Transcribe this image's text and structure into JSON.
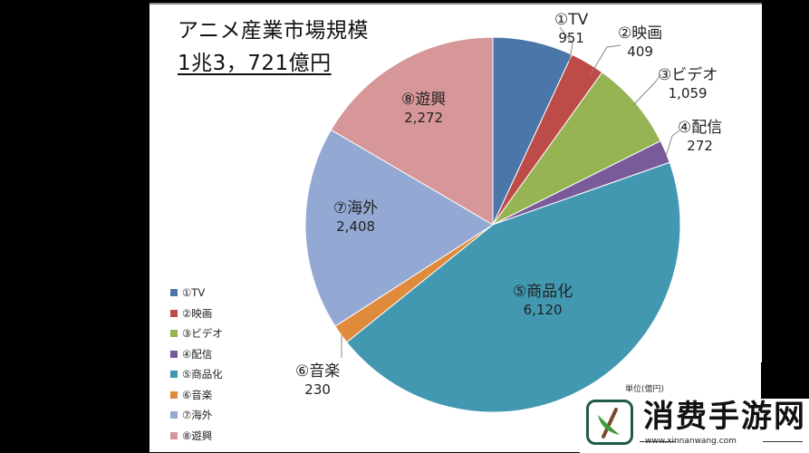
{
  "chart_data": {
    "type": "pie",
    "title": "アニメ産業市場規模",
    "subtitle": "1兆3，721億円",
    "unit_note": "単位(億円)",
    "categories": [
      "①TV",
      "②映画",
      "③ビデオ",
      "④配信",
      "⑤商品化",
      "⑥音楽",
      "⑦海外",
      "⑧遊興"
    ],
    "values": [
      951,
      409,
      1059,
      272,
      6120,
      230,
      2408,
      2272
    ],
    "value_labels": [
      "951",
      "409",
      "1,059",
      "272",
      "6,120",
      "230",
      "2,408",
      "2,272"
    ],
    "colors": [
      "#4a76aa",
      "#bd4b47",
      "#97b454",
      "#7a5b9a",
      "#4298b0",
      "#e08a3c",
      "#93a9d4",
      "#d79697"
    ],
    "legend_position": "left-bottom",
    "total": 13721
  },
  "header": {
    "title": "アニメ産業市場規模",
    "subtitle": "1兆3，721億円"
  },
  "labels": [
    {
      "name": "①TV",
      "value": "951"
    },
    {
      "name": "②映画",
      "value": "409"
    },
    {
      "name": "③ビデオ",
      "value": "1,059"
    },
    {
      "name": "④配信",
      "value": "272"
    },
    {
      "name": "⑤商品化",
      "value": "6,120"
    },
    {
      "name": "⑥音楽",
      "value": "230"
    },
    {
      "name": "⑦海外",
      "value": "2,408"
    },
    {
      "name": "⑧遊興",
      "value": "2,272"
    }
  ],
  "legend": [
    "①TV",
    "②映画",
    "③ビデオ",
    "④配信",
    "⑤商品化",
    "⑥音楽",
    "⑦海外",
    "⑧遊興"
  ],
  "unit": "単位(億円)",
  "watermark": {
    "text": "消费手游网",
    "url": "www.xinnanwang.com"
  }
}
